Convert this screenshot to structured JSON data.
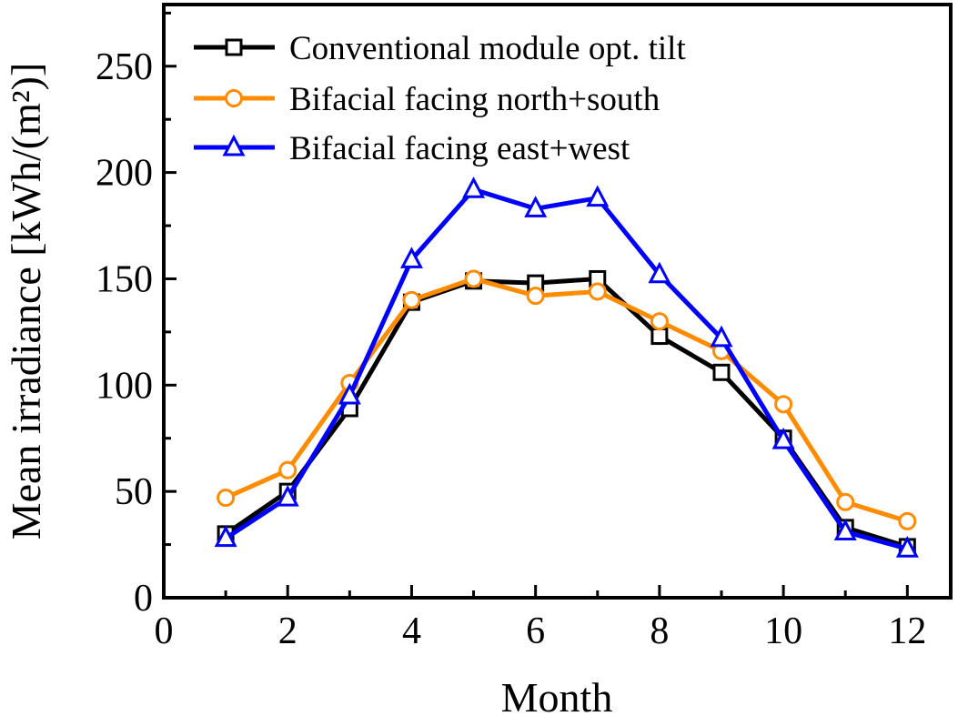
{
  "chart_data": {
    "type": "line",
    "title": "",
    "xlabel": "Month",
    "ylabel": "Mean irradiance [kWh/(m²)]",
    "xlim": [
      0,
      12.7
    ],
    "ylim": [
      0,
      279
    ],
    "xticks": [
      0,
      2,
      4,
      6,
      8,
      10,
      12
    ],
    "yticks": [
      0,
      50,
      100,
      150,
      200,
      250
    ],
    "grid": false,
    "legend_position": "top-left",
    "x": [
      1,
      2,
      3,
      4,
      5,
      6,
      7,
      8,
      9,
      10,
      11,
      12
    ],
    "series": [
      {
        "name": "Conventional module opt. tilt",
        "color": "#000000",
        "marker": "square",
        "values": [
          30,
          50,
          89,
          139,
          149,
          148,
          150,
          123,
          106,
          75,
          33,
          24
        ]
      },
      {
        "name": "Bifacial facing north+south",
        "color": "#FF8C00",
        "marker": "circle",
        "values": [
          47,
          60,
          101,
          140,
          150,
          142,
          144,
          130,
          116,
          91,
          45,
          36
        ]
      },
      {
        "name": "Bifacial facing east+west",
        "color": "#0000FF",
        "marker": "triangle",
        "values": [
          28,
          47,
          95,
          159,
          192,
          183,
          188,
          152,
          122,
          74,
          31,
          23
        ]
      }
    ]
  }
}
